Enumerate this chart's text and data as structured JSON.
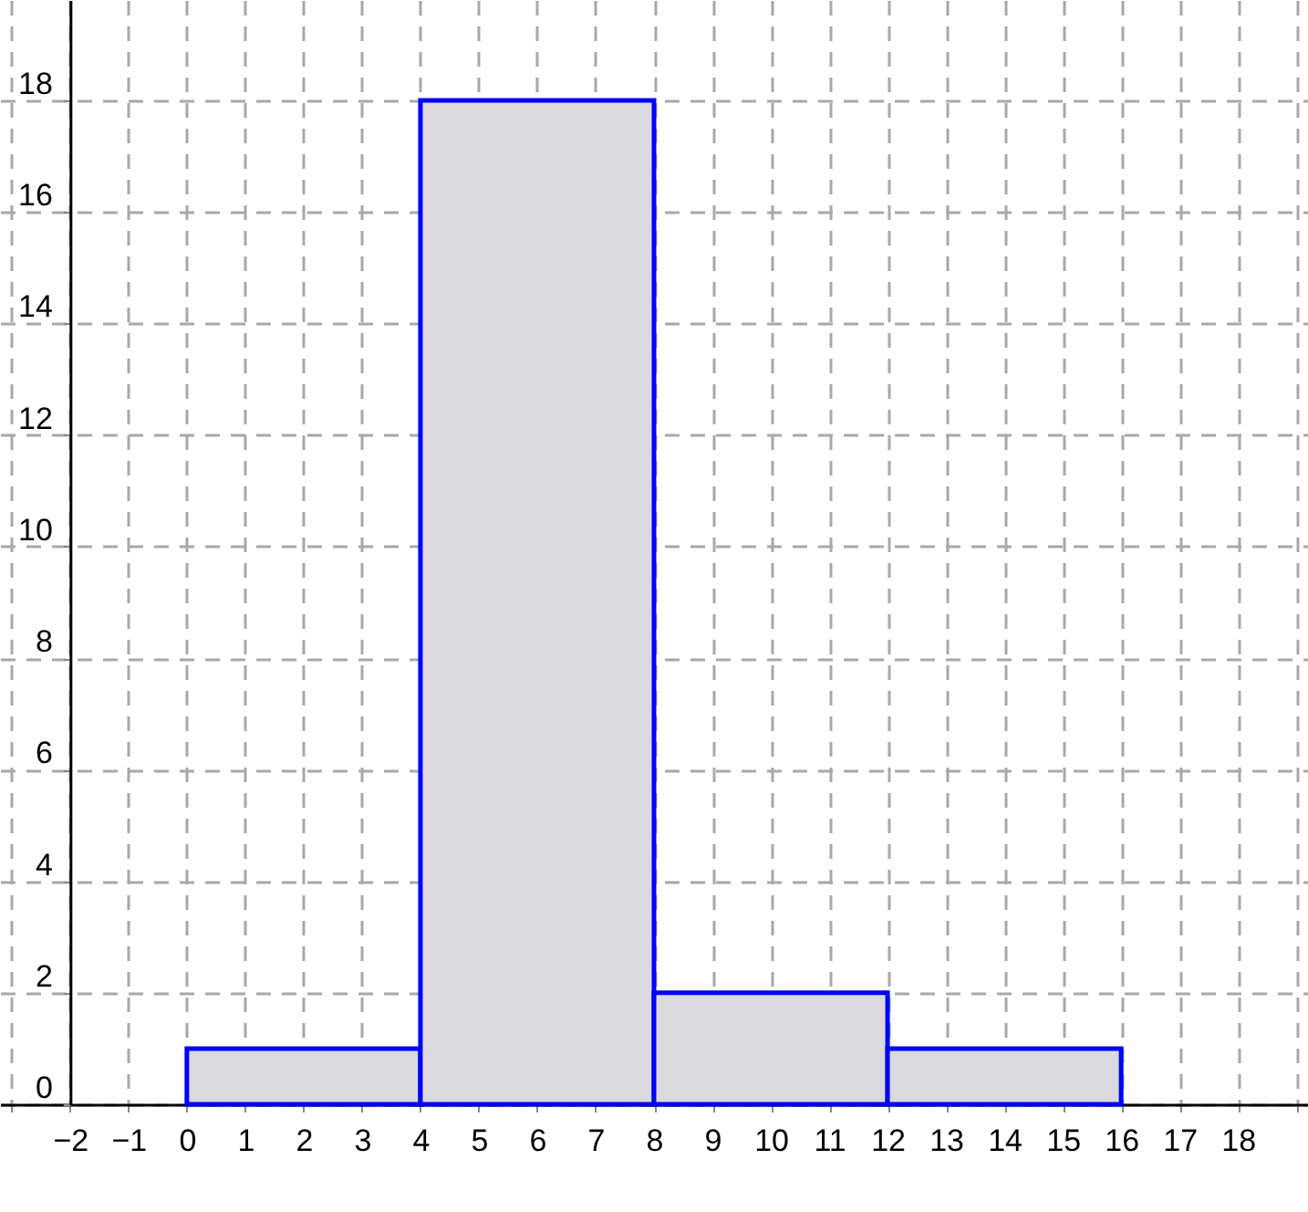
{
  "chart_data": {
    "type": "histogram",
    "bins": [
      0,
      4,
      8,
      12,
      16
    ],
    "values": [
      1,
      18,
      2,
      1
    ],
    "color": "#d9d9de",
    "xlim": [
      -3.2,
      19.2
    ],
    "ylim": [
      0,
      19.8
    ],
    "xticks": [
      {
        "value": -3,
        "label": null
      },
      {
        "value": -2,
        "label": "−2"
      },
      {
        "value": -1,
        "label": "−1"
      },
      0,
      1,
      2,
      3,
      4,
      5,
      6,
      7,
      8,
      9,
      10,
      11,
      12,
      13,
      14,
      15,
      16,
      17,
      18,
      {
        "value": 19,
        "label": null
      }
    ],
    "yticks": [
      0,
      2,
      4,
      6,
      8,
      10,
      12,
      14,
      16,
      18
    ],
    "grid": true
  }
}
